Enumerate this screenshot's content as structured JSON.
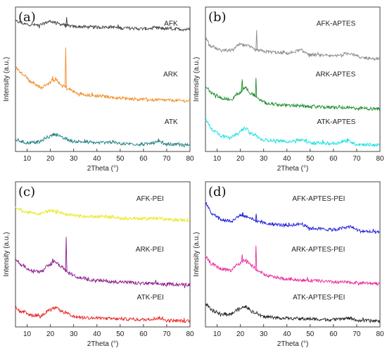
{
  "chart_data": [
    {
      "type": "line",
      "panel_label": "(a)",
      "xlabel": "2Theta (°)",
      "ylabel": "Intensity (a.u.)",
      "xlim": [
        5,
        80
      ],
      "xticks": [
        10,
        20,
        30,
        40,
        50,
        60,
        70,
        80
      ],
      "yticks": "none",
      "grid": false,
      "series": [
        {
          "name": "AFK",
          "color": "#404040",
          "points": [
            [
              5,
              0.9
            ],
            [
              10,
              0.88
            ],
            [
              15,
              0.875
            ],
            [
              20,
              0.9
            ],
            [
              25,
              0.88
            ],
            [
              27,
              0.87
            ],
            [
              30,
              0.865
            ],
            [
              40,
              0.86
            ],
            [
              46,
              0.862
            ],
            [
              50,
              0.855
            ],
            [
              60,
              0.85
            ],
            [
              67,
              0.855
            ],
            [
              70,
              0.85
            ],
            [
              80,
              0.845
            ]
          ],
          "peaks": [
            [
              27,
              0.93
            ]
          ]
        },
        {
          "name": "ARK",
          "color": "#f28c28",
          "points": [
            [
              5,
              0.58
            ],
            [
              8,
              0.54
            ],
            [
              12,
              0.48
            ],
            [
              16,
              0.44
            ],
            [
              19,
              0.47
            ],
            [
              22,
              0.5
            ],
            [
              25,
              0.46
            ],
            [
              28,
              0.43
            ],
            [
              32,
              0.4
            ],
            [
              40,
              0.385
            ],
            [
              50,
              0.37
            ],
            [
              60,
              0.36
            ],
            [
              70,
              0.355
            ],
            [
              80,
              0.35
            ]
          ],
          "peaks": [
            [
              26.6,
              0.72
            ],
            [
              21,
              0.52
            ]
          ]
        },
        {
          "name": "ATK",
          "color": "#208080",
          "points": [
            [
              5,
              0.08
            ],
            [
              10,
              0.06
            ],
            [
              15,
              0.065
            ],
            [
              19,
              0.1
            ],
            [
              22,
              0.12
            ],
            [
              26,
              0.09
            ],
            [
              30,
              0.07
            ],
            [
              40,
              0.06
            ],
            [
              46,
              0.065
            ],
            [
              50,
              0.055
            ],
            [
              60,
              0.05
            ],
            [
              67,
              0.065
            ],
            [
              70,
              0.05
            ],
            [
              80,
              0.045
            ]
          ],
          "peaks": [
            [
              66.5,
              0.09
            ]
          ]
        }
      ]
    },
    {
      "type": "line",
      "panel_label": "(b)",
      "xlabel": "2Theta (°)",
      "ylabel": "Intensity (a.u.)",
      "xlim": [
        5,
        80
      ],
      "xticks": [
        10,
        20,
        30,
        40,
        50,
        60,
        70,
        80
      ],
      "yticks": "none",
      "grid": false,
      "series": [
        {
          "name": "AFK-APTES",
          "color": "#8c8c8c",
          "points": [
            [
              5,
              0.78
            ],
            [
              8,
              0.72
            ],
            [
              12,
              0.7
            ],
            [
              16,
              0.7
            ],
            [
              20,
              0.74
            ],
            [
              23,
              0.73
            ],
            [
              27,
              0.7
            ],
            [
              32,
              0.69
            ],
            [
              40,
              0.68
            ],
            [
              46,
              0.7
            ],
            [
              50,
              0.67
            ],
            [
              60,
              0.66
            ],
            [
              67,
              0.68
            ],
            [
              72,
              0.65
            ],
            [
              80,
              0.64
            ]
          ],
          "peaks": [
            [
              27,
              0.84
            ]
          ]
        },
        {
          "name": "ARK-APTES",
          "color": "#1a8c2a",
          "points": [
            [
              5,
              0.45
            ],
            [
              8,
              0.4
            ],
            [
              12,
              0.37
            ],
            [
              16,
              0.36
            ],
            [
              19,
              0.4
            ],
            [
              22,
              0.44
            ],
            [
              25,
              0.4
            ],
            [
              28,
              0.36
            ],
            [
              32,
              0.33
            ],
            [
              40,
              0.32
            ],
            [
              50,
              0.31
            ],
            [
              60,
              0.305
            ],
            [
              70,
              0.3
            ],
            [
              80,
              0.295
            ]
          ],
          "peaks": [
            [
              20.8,
              0.5
            ],
            [
              26.7,
              0.51
            ]
          ]
        },
        {
          "name": "ATK-APTES",
          "color": "#19e0e0",
          "points": [
            [
              5,
              0.22
            ],
            [
              8,
              0.15
            ],
            [
              12,
              0.11
            ],
            [
              16,
              0.1
            ],
            [
              19,
              0.13
            ],
            [
              22,
              0.16
            ],
            [
              25,
              0.12
            ],
            [
              30,
              0.08
            ],
            [
              40,
              0.07
            ],
            [
              46,
              0.08
            ],
            [
              50,
              0.06
            ],
            [
              60,
              0.055
            ],
            [
              66,
              0.075
            ],
            [
              70,
              0.05
            ],
            [
              80,
              0.045
            ]
          ],
          "peaks": [
            [
              66.2,
              0.09
            ]
          ]
        }
      ]
    },
    {
      "type": "line",
      "panel_label": "(c)",
      "xlabel": "2Theta (°)",
      "ylabel": "Intensity (a.u.)",
      "xlim": [
        5,
        80
      ],
      "xticks": [
        10,
        20,
        30,
        40,
        50,
        60,
        70,
        80
      ],
      "yticks": "none",
      "grid": false,
      "series": [
        {
          "name": "AFK-PEI",
          "color": "#e8e820",
          "points": [
            [
              5,
              0.82
            ],
            [
              10,
              0.79
            ],
            [
              15,
              0.78
            ],
            [
              20,
              0.8
            ],
            [
              24,
              0.79
            ],
            [
              28,
              0.77
            ],
            [
              35,
              0.76
            ],
            [
              46,
              0.76
            ],
            [
              50,
              0.75
            ],
            [
              60,
              0.745
            ],
            [
              67,
              0.75
            ],
            [
              70,
              0.74
            ],
            [
              80,
              0.735
            ]
          ],
          "peaks": []
        },
        {
          "name": "ARK-PEI",
          "color": "#8a1a8a",
          "points": [
            [
              5,
              0.46
            ],
            [
              8,
              0.42
            ],
            [
              12,
              0.39
            ],
            [
              16,
              0.38
            ],
            [
              19,
              0.42
            ],
            [
              22,
              0.45
            ],
            [
              25,
              0.41
            ],
            [
              28,
              0.37
            ],
            [
              32,
              0.34
            ],
            [
              40,
              0.32
            ],
            [
              50,
              0.31
            ],
            [
              60,
              0.3
            ],
            [
              70,
              0.295
            ],
            [
              80,
              0.29
            ]
          ],
          "peaks": [
            [
              26.8,
              0.62
            ],
            [
              21,
              0.47
            ]
          ]
        },
        {
          "name": "ATK-PEI",
          "color": "#e82020",
          "points": [
            [
              5,
              0.13
            ],
            [
              8,
              0.1
            ],
            [
              12,
              0.08
            ],
            [
              16,
              0.08
            ],
            [
              19,
              0.11
            ],
            [
              22,
              0.13
            ],
            [
              26,
              0.1
            ],
            [
              30,
              0.07
            ],
            [
              40,
              0.06
            ],
            [
              50,
              0.055
            ],
            [
              60,
              0.05
            ],
            [
              67,
              0.06
            ],
            [
              70,
              0.045
            ],
            [
              80,
              0.04
            ]
          ],
          "peaks": []
        }
      ]
    },
    {
      "type": "line",
      "panel_label": "(d)",
      "xlabel": "2Theta (°)",
      "ylabel": "Intensity (a.u.)",
      "xlim": [
        5,
        80
      ],
      "xticks": [
        10,
        20,
        30,
        40,
        50,
        60,
        70,
        80
      ],
      "yticks": "none",
      "grid": false,
      "series": [
        {
          "name": "AFK-APTES-PEI",
          "color": "#1a1ad8",
          "points": [
            [
              5,
              0.85
            ],
            [
              8,
              0.78
            ],
            [
              12,
              0.74
            ],
            [
              16,
              0.73
            ],
            [
              20,
              0.77
            ],
            [
              23,
              0.76
            ],
            [
              27,
              0.73
            ],
            [
              32,
              0.71
            ],
            [
              40,
              0.7
            ],
            [
              46,
              0.71
            ],
            [
              50,
              0.68
            ],
            [
              60,
              0.67
            ],
            [
              67,
              0.69
            ],
            [
              72,
              0.66
            ],
            [
              80,
              0.65
            ]
          ],
          "peaks": [
            [
              21,
              0.79
            ],
            [
              26.8,
              0.78
            ]
          ]
        },
        {
          "name": "ARK-APTES-PEI",
          "color": "#e82a9a",
          "points": [
            [
              5,
              0.48
            ],
            [
              8,
              0.43
            ],
            [
              12,
              0.4
            ],
            [
              16,
              0.39
            ],
            [
              19,
              0.43
            ],
            [
              22,
              0.46
            ],
            [
              25,
              0.42
            ],
            [
              28,
              0.38
            ],
            [
              32,
              0.35
            ],
            [
              40,
              0.33
            ],
            [
              50,
              0.32
            ],
            [
              60,
              0.31
            ],
            [
              70,
              0.305
            ],
            [
              80,
              0.3
            ]
          ],
          "peaks": [
            [
              20.8,
              0.5
            ],
            [
              26.7,
              0.56
            ]
          ]
        },
        {
          "name": "ATK-APTES-PEI",
          "color": "#222222",
          "points": [
            [
              5,
              0.16
            ],
            [
              8,
              0.11
            ],
            [
              12,
              0.09
            ],
            [
              16,
              0.09
            ],
            [
              19,
              0.12
            ],
            [
              22,
              0.14
            ],
            [
              26,
              0.1
            ],
            [
              30,
              0.07
            ],
            [
              40,
              0.06
            ],
            [
              50,
              0.055
            ],
            [
              60,
              0.05
            ],
            [
              67,
              0.06
            ],
            [
              70,
              0.045
            ],
            [
              80,
              0.04
            ]
          ],
          "peaks": []
        }
      ]
    }
  ]
}
